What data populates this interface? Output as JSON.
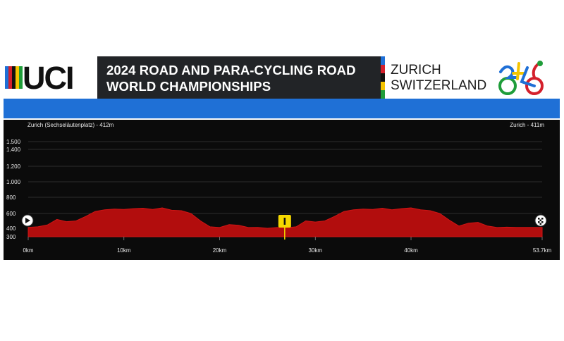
{
  "header": {
    "org_logo_text": "UCI",
    "title_line1": "2024 ROAD AND PARA-CYCLING ROAD",
    "title_line2": "WORLD CHAMPIONSHIPS",
    "city": "ZURICH",
    "country": "SWITZERLAND",
    "event_logo": "zurich-2024-cyclist-logo",
    "colors": {
      "title_band": "#222427",
      "blue_band": "#1f70d6"
    }
  },
  "profile": {
    "start_label": "Zurich (Sechseläutenplatz) - 412m",
    "finish_label": "Zurich - 411m",
    "start_icon": "play-icon",
    "finish_icon": "finish-flag-icon",
    "marker_icon": "checkpoint-marker-icon",
    "marker_km": 26.8
  },
  "chart_data": {
    "type": "area",
    "title": "",
    "xlabel": "",
    "ylabel": "",
    "x_ticks": [
      "0km",
      "10km",
      "20km",
      "30km",
      "40km",
      "53.7km"
    ],
    "y_ticks": [
      "300",
      "400",
      "600",
      "800",
      "1.000",
      "1.200",
      "1.400",
      "1.500"
    ],
    "x_range": [
      0,
      53.7
    ],
    "y_range": [
      300,
      1500
    ],
    "grid": true,
    "fill_color": "#b20d0d",
    "x": [
      0,
      1,
      2,
      3,
      4,
      5,
      6,
      7,
      8,
      9,
      10,
      11,
      12,
      13,
      14,
      15,
      16,
      17,
      18,
      19,
      20,
      21,
      22,
      23,
      24,
      25,
      26,
      27,
      28,
      29,
      30,
      31,
      32,
      33,
      34,
      35,
      36,
      37,
      38,
      39,
      40,
      41,
      42,
      43,
      44,
      45,
      46,
      47,
      48,
      49,
      50,
      51,
      52,
      53,
      53.7
    ],
    "y": [
      412,
      420,
      445,
      520,
      490,
      500,
      560,
      625,
      645,
      655,
      650,
      660,
      665,
      650,
      670,
      640,
      635,
      600,
      500,
      420,
      410,
      450,
      440,
      410,
      412,
      400,
      410,
      408,
      420,
      500,
      485,
      500,
      560,
      625,
      645,
      655,
      650,
      665,
      645,
      660,
      670,
      645,
      635,
      600,
      510,
      430,
      470,
      480,
      430,
      410,
      415,
      412,
      412,
      411,
      411
    ]
  }
}
